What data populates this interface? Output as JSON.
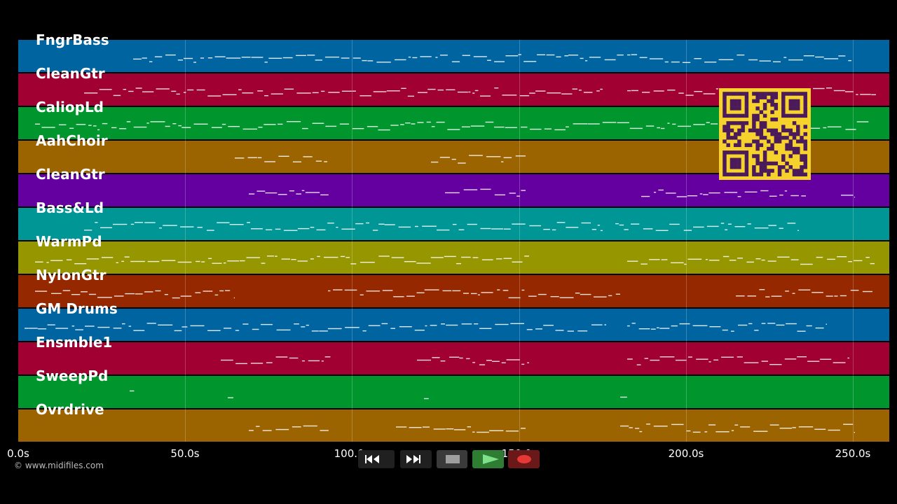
{
  "tracks": [
    {
      "name": "FngrBass",
      "color": "#0064a0"
    },
    {
      "name": "CleanGtr",
      "color": "#a00032"
    },
    {
      "name": "CaliopLd",
      "color": "#00962d"
    },
    {
      "name": "AahChoir",
      "color": "#9c6400"
    },
    {
      "name": "CleanGtr",
      "color": "#6400a0"
    },
    {
      "name": "Bass&Ld",
      "color": "#009696"
    },
    {
      "name": "WarmPd",
      "color": "#969600"
    },
    {
      "name": "NylonGtr",
      "color": "#962800"
    },
    {
      "name": "GM Drums",
      "color": "#0064a0"
    },
    {
      "name": "Ensmble1",
      "color": "#a00032"
    },
    {
      "name": "SweepPd",
      "color": "#00962d"
    },
    {
      "name": "Ovrdrive",
      "color": "#9c6400"
    }
  ],
  "timeline": {
    "ticks": [
      "0.0s",
      "50.0s",
      "100.0s",
      "150.0s",
      "200.0s",
      "250.0s"
    ],
    "max_seconds": 261
  },
  "copyright": "© www.midifiles.com",
  "transport": {
    "rewind_icon": "rewind-icon",
    "ffwd_icon": "fast-forward-icon",
    "stop_icon": "stop-icon",
    "play_icon": "play-icon",
    "record_icon": "record-icon",
    "play_color": "#7fe08a",
    "record_color": "#e53935"
  },
  "qr_code": {
    "color": "#f5d22c",
    "module_color": "#4a1a5a"
  }
}
